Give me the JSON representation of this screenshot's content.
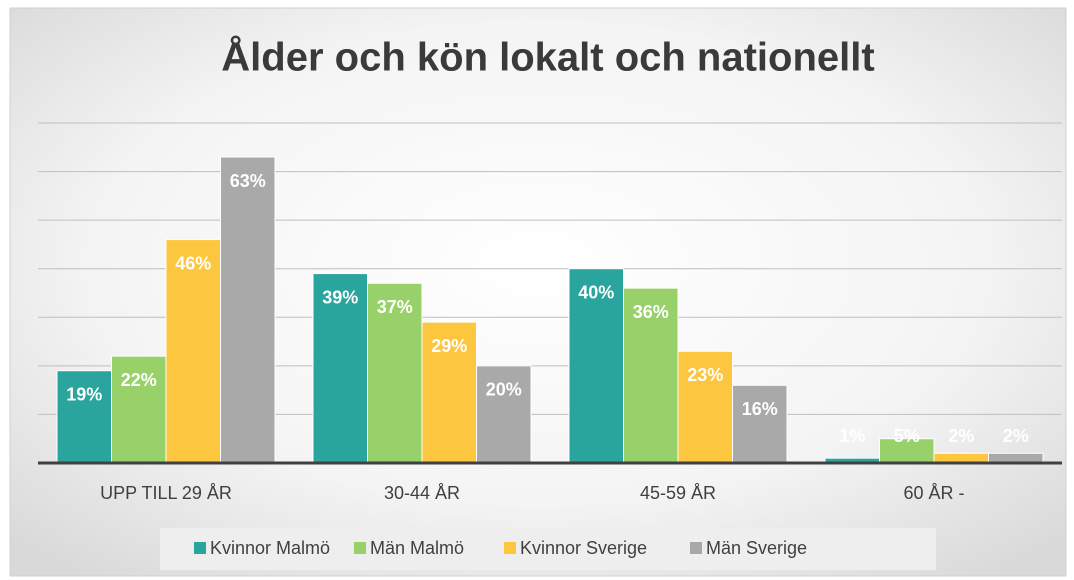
{
  "chart_data": {
    "type": "bar",
    "title": "Ålder och kön lokalt och nationellt",
    "categories": [
      "UPP TILL 29 ÅR",
      "30-44 ÅR",
      "45-59 ÅR",
      "60 ÅR -"
    ],
    "series": [
      {
        "name": "Kvinnor Malmö",
        "color": "#2aa59d",
        "values": [
          19,
          39,
          40,
          1
        ],
        "value_labels": [
          "19%",
          "39%",
          "40%",
          "1%"
        ]
      },
      {
        "name": "Män Malmö",
        "color": "#98d169",
        "values": [
          22,
          37,
          36,
          5
        ],
        "value_labels": [
          "22%",
          "37%",
          "36%",
          "5%"
        ]
      },
      {
        "name": "Kvinnor Sverige",
        "color": "#fdc63f",
        "values": [
          46,
          29,
          23,
          2
        ],
        "value_labels": [
          "46%",
          "29%",
          "23%",
          "2%"
        ]
      },
      {
        "name": "Män Sverige",
        "color": "#a9a9a9",
        "values": [
          63,
          20,
          16,
          2
        ],
        "value_labels": [
          "63%",
          "20%",
          "16%",
          "2%"
        ]
      }
    ],
    "ylim": [
      0,
      70
    ],
    "yticks": [
      0,
      10,
      20,
      30,
      40,
      50,
      60,
      70
    ],
    "grid": true,
    "legend": "bottom"
  }
}
